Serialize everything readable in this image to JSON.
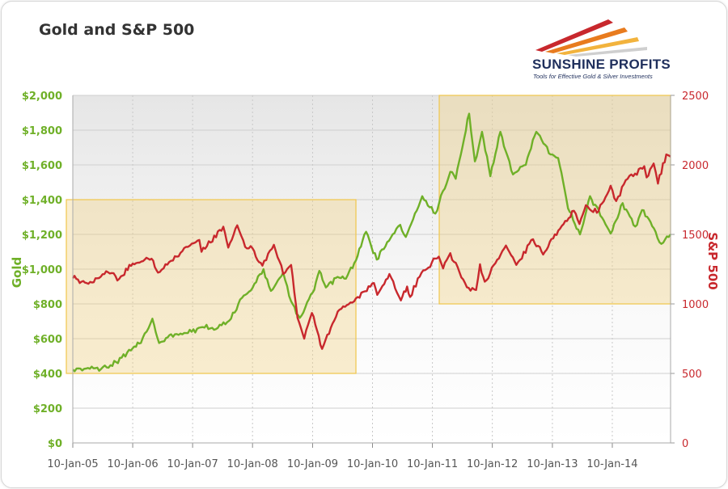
{
  "chart_data": {
    "type": "line",
    "title": "Gold and S&P 500",
    "x_ticks": [
      "10-Jan-05",
      "10-Jan-06",
      "10-Jan-07",
      "10-Jan-08",
      "10-Jan-09",
      "10-Jan-10",
      "10-Jan-11",
      "10-Jan-12",
      "10-Jan-13",
      "10-Jan-14"
    ],
    "x_range": [
      "2005-01-10",
      "2014-12-31"
    ],
    "y_left": {
      "label": "Gold",
      "ticks": [
        "$0",
        "$200",
        "$400",
        "$600",
        "$800",
        "$1,000",
        "$1,200",
        "$1,400",
        "$1,600",
        "$1,800",
        "$2,000"
      ],
      "range": [
        0,
        2000
      ],
      "color": "#6fb028"
    },
    "y_right": {
      "label": "S&P 500",
      "ticks": [
        "0",
        "500",
        "1000",
        "1500",
        "2000",
        "2500"
      ],
      "range": [
        0,
        2500
      ],
      "color": "#c8282d"
    },
    "highlight_regions": [
      {
        "x": [
          "2005-01-10",
          "2009-10-01"
        ],
        "gold": [
          400,
          1400
        ]
      },
      {
        "x": [
          "2011-04-01",
          "2014-12-31"
        ],
        "gold": [
          800,
          2000
        ]
      }
    ],
    "series": [
      {
        "name": "Gold",
        "axis": "left",
        "color": "#6fb028",
        "points": [
          [
            "2005-01-10",
            422
          ],
          [
            "2005-04-01",
            428
          ],
          [
            "2005-07-01",
            425
          ],
          [
            "2005-10-01",
            465
          ],
          [
            "2006-01-10",
            545
          ],
          [
            "2006-03-01",
            575
          ],
          [
            "2006-05-10",
            715
          ],
          [
            "2006-06-20",
            575
          ],
          [
            "2006-09-01",
            625
          ],
          [
            "2006-12-01",
            632
          ],
          [
            "2007-03-01",
            665
          ],
          [
            "2007-06-01",
            655
          ],
          [
            "2007-09-01",
            715
          ],
          [
            "2007-11-07",
            835
          ],
          [
            "2008-01-10",
            892
          ],
          [
            "2008-03-17",
            1000
          ],
          [
            "2008-05-01",
            875
          ],
          [
            "2008-07-15",
            980
          ],
          [
            "2008-09-01",
            815
          ],
          [
            "2008-10-24",
            720
          ],
          [
            "2009-01-10",
            865
          ],
          [
            "2009-02-20",
            990
          ],
          [
            "2009-04-01",
            895
          ],
          [
            "2009-06-01",
            950
          ],
          [
            "2009-08-01",
            945
          ],
          [
            "2009-10-01",
            1050
          ],
          [
            "2009-12-02",
            1215
          ],
          [
            "2010-02-05",
            1055
          ],
          [
            "2010-05-01",
            1180
          ],
          [
            "2010-06-28",
            1255
          ],
          [
            "2010-08-01",
            1185
          ],
          [
            "2010-11-09",
            1420
          ],
          [
            "2011-01-28",
            1320
          ],
          [
            "2011-04-29",
            1560
          ],
          [
            "2011-06-01",
            1520
          ],
          [
            "2011-08-22",
            1895
          ],
          [
            "2011-09-26",
            1620
          ],
          [
            "2011-11-08",
            1790
          ],
          [
            "2011-12-29",
            1535
          ],
          [
            "2012-02-28",
            1790
          ],
          [
            "2012-05-15",
            1545
          ],
          [
            "2012-08-01",
            1600
          ],
          [
            "2012-10-04",
            1790
          ],
          [
            "2012-12-30",
            1660
          ],
          [
            "2013-02-14",
            1640
          ],
          [
            "2013-04-15",
            1350
          ],
          [
            "2013-06-27",
            1200
          ],
          [
            "2013-08-27",
            1420
          ],
          [
            "2013-12-31",
            1205
          ],
          [
            "2014-03-14",
            1380
          ],
          [
            "2014-05-30",
            1245
          ],
          [
            "2014-07-10",
            1340
          ],
          [
            "2014-10-01",
            1215
          ],
          [
            "2014-11-05",
            1145
          ],
          [
            "2014-12-31",
            1200
          ]
        ]
      },
      {
        "name": "S&P 500",
        "axis": "right",
        "color": "#c8282d",
        "points": [
          [
            "2005-01-10",
            1185
          ],
          [
            "2005-04-15",
            1145
          ],
          [
            "2005-08-01",
            1235
          ],
          [
            "2005-10-20",
            1180
          ],
          [
            "2006-01-10",
            1290
          ],
          [
            "2006-05-05",
            1325
          ],
          [
            "2006-06-13",
            1225
          ],
          [
            "2006-09-01",
            1310
          ],
          [
            "2006-12-01",
            1410
          ],
          [
            "2007-02-20",
            1460
          ],
          [
            "2007-03-05",
            1375
          ],
          [
            "2007-07-16",
            1555
          ],
          [
            "2007-08-15",
            1405
          ],
          [
            "2007-10-09",
            1565
          ],
          [
            "2007-11-26",
            1410
          ],
          [
            "2008-01-10",
            1400
          ],
          [
            "2008-03-10",
            1275
          ],
          [
            "2008-05-19",
            1425
          ],
          [
            "2008-07-15",
            1215
          ],
          [
            "2008-09-01",
            1280
          ],
          [
            "2008-10-10",
            900
          ],
          [
            "2008-11-20",
            750
          ],
          [
            "2009-01-06",
            935
          ],
          [
            "2009-03-09",
            677
          ],
          [
            "2009-06-12",
            945
          ],
          [
            "2009-10-01",
            1040
          ],
          [
            "2010-01-19",
            1150
          ],
          [
            "2010-02-08",
            1065
          ],
          [
            "2010-04-23",
            1215
          ],
          [
            "2010-07-02",
            1025
          ],
          [
            "2010-08-09",
            1125
          ],
          [
            "2010-08-27",
            1050
          ],
          [
            "2010-11-05",
            1225
          ],
          [
            "2011-02-18",
            1340
          ],
          [
            "2011-03-16",
            1255
          ],
          [
            "2011-04-29",
            1365
          ],
          [
            "2011-08-08",
            1120
          ],
          [
            "2011-10-03",
            1100
          ],
          [
            "2011-10-27",
            1285
          ],
          [
            "2011-11-25",
            1160
          ],
          [
            "2012-04-02",
            1420
          ],
          [
            "2012-06-04",
            1280
          ],
          [
            "2012-09-14",
            1465
          ],
          [
            "2012-11-15",
            1355
          ],
          [
            "2013-01-25",
            1500
          ],
          [
            "2013-05-21",
            1670
          ],
          [
            "2013-06-24",
            1575
          ],
          [
            "2013-08-02",
            1710
          ],
          [
            "2013-10-08",
            1655
          ],
          [
            "2013-12-31",
            1850
          ],
          [
            "2014-02-03",
            1740
          ],
          [
            "2014-04-02",
            1890
          ],
          [
            "2014-07-24",
            1990
          ],
          [
            "2014-08-07",
            1910
          ],
          [
            "2014-09-19",
            2010
          ],
          [
            "2014-10-15",
            1865
          ],
          [
            "2014-12-05",
            2075
          ],
          [
            "2014-12-31",
            2060
          ]
        ]
      }
    ]
  }
}
